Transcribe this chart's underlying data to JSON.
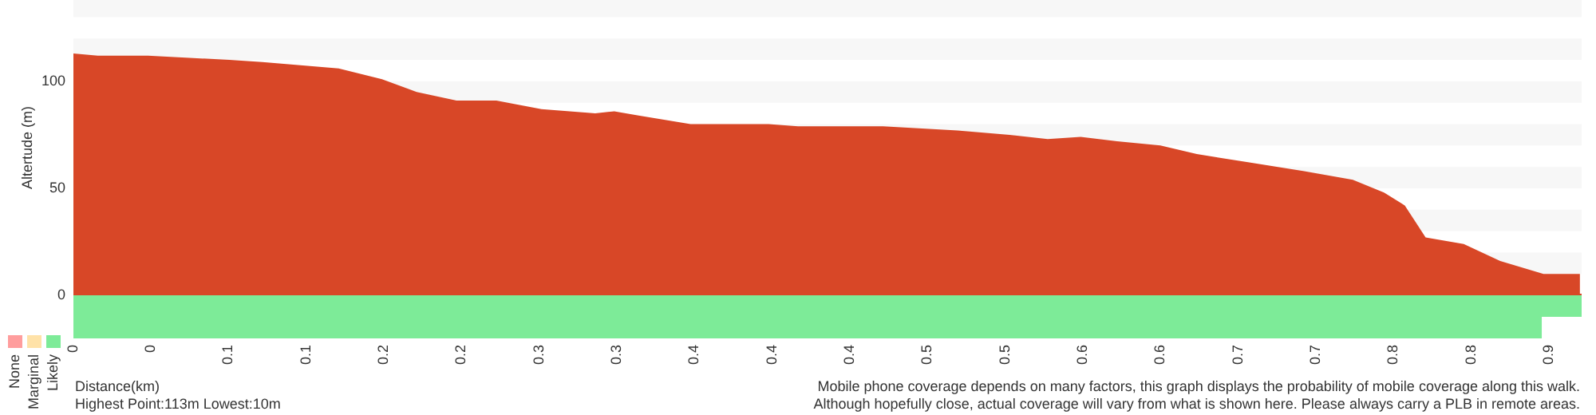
{
  "chart_data": [
    {
      "type": "area",
      "ylabel": "Altertude (m)",
      "xlim": [
        0,
        0.87
      ],
      "ylim": [
        0,
        138
      ],
      "yticks": [
        0,
        50,
        100
      ],
      "tick_labels": "y",
      "grid": false,
      "x": [
        0,
        0.014,
        0.043,
        0.067,
        0.09,
        0.109,
        0.153,
        0.178,
        0.198,
        0.221,
        0.244,
        0.27,
        0.301,
        0.312,
        0.326,
        0.356,
        0.401,
        0.418,
        0.448,
        0.467,
        0.51,
        0.54,
        0.562,
        0.581,
        0.602,
        0.627,
        0.648,
        0.679,
        0.71,
        0.738,
        0.756,
        0.768,
        0.78,
        0.802,
        0.823,
        0.848,
        0.869
      ],
      "series": [
        {
          "color": "#d84727",
          "values": [
            113,
            112,
            112,
            111,
            110,
            109,
            106,
            101,
            95,
            91,
            91,
            87,
            85,
            86,
            84,
            80,
            80,
            79,
            79,
            79,
            77,
            75,
            73,
            74,
            72,
            70,
            66,
            62,
            58,
            54,
            48,
            42,
            27,
            24,
            16,
            10,
            10
          ]
        }
      ],
      "bands": [
        {
          "axis": "y",
          "from": 10,
          "to": 20,
          "color": "#f7f7f7"
        },
        {
          "axis": "y",
          "from": 30,
          "to": 40,
          "color": "#f7f7f7"
        },
        {
          "axis": "y",
          "from": 50,
          "to": 60,
          "color": "#f7f7f7"
        },
        {
          "axis": "y",
          "from": 70,
          "to": 80,
          "color": "#f7f7f7"
        },
        {
          "axis": "y",
          "from": 90,
          "to": 100,
          "color": "#f7f7f7"
        },
        {
          "axis": "y",
          "from": 110,
          "to": 120,
          "color": "#f7f7f7"
        },
        {
          "axis": "y",
          "from": 130,
          "to": 140,
          "color": "#f7f7f7"
        }
      ]
    },
    {
      "type": "bar",
      "orientation": "horizontal",
      "categories": [
        null,
        null
      ],
      "xlabel": "Distance(km)",
      "xlim": [
        0,
        0.87
      ],
      "tick_labels": "x",
      "legend": "bottom left",
      "xticks": [
        {
          "value": 0,
          "label": "0"
        },
        {
          "value": 0.0448,
          "label": "0"
        },
        {
          "value": 0.0896,
          "label": "0.1"
        },
        {
          "value": 0.1344,
          "label": "0.1"
        },
        {
          "value": 0.1792,
          "label": "0.2"
        },
        {
          "value": 0.224,
          "label": "0.2"
        },
        {
          "value": 0.2688,
          "label": "0.3"
        },
        {
          "value": 0.3136,
          "label": "0.3"
        },
        {
          "value": 0.3584,
          "label": "0.4"
        },
        {
          "value": 0.4032,
          "label": "0.4"
        },
        {
          "value": 0.448,
          "label": "0.4"
        },
        {
          "value": 0.4928,
          "label": "0.5"
        },
        {
          "value": 0.5376,
          "label": "0.5"
        },
        {
          "value": 0.5824,
          "label": "0.6"
        },
        {
          "value": 0.6272,
          "label": "0.6"
        },
        {
          "value": 0.672,
          "label": "0.7"
        },
        {
          "value": 0.7168,
          "label": "0.7"
        },
        {
          "value": 0.7616,
          "label": "0.8"
        },
        {
          "value": 0.8064,
          "label": "0.8"
        },
        {
          "value": 0.8512,
          "label": "0.9"
        }
      ],
      "series": [
        {
          "name": "Likely",
          "color": "#7deb98",
          "values": [
            0.87,
            0.847
          ]
        }
      ],
      "annotations": [
        "Highest Point:113m Lowest:10m",
        "None",
        "Marginal",
        "Mobile phone coverage depends on many factors, this graph displays the probability of mobile coverage along this walk.",
        "Although hopefully close, actual coverage will vary from what is shown here. Please always carry a PLB in remote areas."
      ]
    }
  ]
}
